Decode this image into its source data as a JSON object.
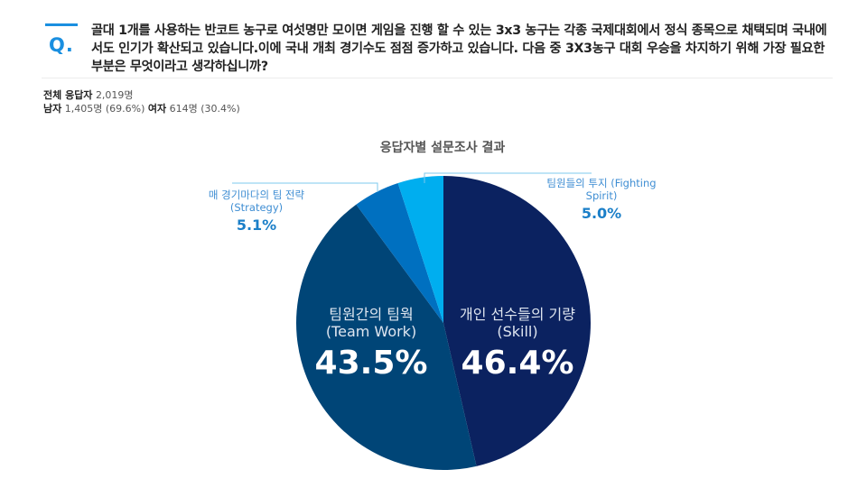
{
  "question": {
    "marker": "Q.",
    "text": "골대 1개를 사용하는 반코트 농구로 여섯명만 모이면 게임을 진행 할 수 있는 3x3 농구는 각종 국제대회에서 정식 종목으로 채택되며 국내에서도 인기가 확산되고 있습니다.이에 국내 개최 경기수도 점점 증가하고 있습니다. 다음 중 3X3농구 대회 우승을 차지하기 위해 가장 필요한 부분은 무엇이라고 생각하십니까?"
  },
  "stats": {
    "total_label": "전체 응답자",
    "total_value": "2,019명",
    "male_label": "남자",
    "male_value": "1,405명 (69.6%)",
    "female_label": "여자",
    "female_value": "614명 (30.4%)"
  },
  "colors": {
    "accent": "#1a8fe0",
    "skill": "#0b2260",
    "teamwork": "#004577",
    "strategy": "#0070c0",
    "fighting": "#00aeef",
    "leader": "#7cc8ee"
  },
  "chart_data": {
    "type": "pie",
    "title": "응답자별 설문조사 결과",
    "start_angle": "12 o'clock, clockwise",
    "categories": [
      "개인 선수들의 기량 (Skill)",
      "팀원간의 팀웍 (Team Work)",
      "매 경기마다의 팀 전략 (Strategy)",
      "팀원들의 투지 (Fighting Spirit)"
    ],
    "values": [
      46.4,
      43.5,
      5.1,
      5.0
    ],
    "unit": "%",
    "legend": "none (direct labels)"
  },
  "labels": {
    "skill": {
      "name": "개인 선수들의 기량",
      "sub": "(Skill)",
      "pct": "46.4%"
    },
    "teamwork": {
      "name": "팀원간의 팀웍",
      "sub": "(Team Work)",
      "pct": "43.5%"
    },
    "strategy": {
      "name": "매 경기마다의 팀 전략",
      "sub": "(Strategy)",
      "pct": "5.1%"
    },
    "fighting": {
      "name": "팀원들의 투지 (Fighting",
      "sub": "Spirit)",
      "pct": "5.0%"
    }
  }
}
